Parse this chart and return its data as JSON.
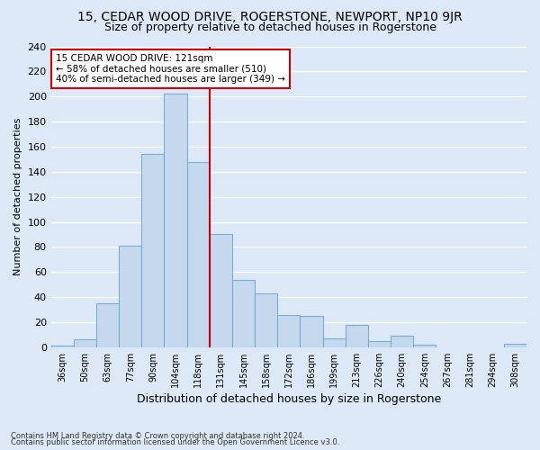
{
  "title": "15, CEDAR WOOD DRIVE, ROGERSTONE, NEWPORT, NP10 9JR",
  "subtitle": "Size of property relative to detached houses in Rogerstone",
  "xlabel": "Distribution of detached houses by size in Rogerstone",
  "ylabel": "Number of detached properties",
  "categories": [
    "36sqm",
    "50sqm",
    "63sqm",
    "77sqm",
    "90sqm",
    "104sqm",
    "118sqm",
    "131sqm",
    "145sqm",
    "158sqm",
    "172sqm",
    "186sqm",
    "199sqm",
    "213sqm",
    "226sqm",
    "240sqm",
    "254sqm",
    "267sqm",
    "281sqm",
    "294sqm",
    "308sqm"
  ],
  "values": [
    1,
    6,
    35,
    81,
    154,
    202,
    148,
    90,
    54,
    43,
    26,
    25,
    7,
    18,
    5,
    9,
    2,
    0,
    0,
    0,
    3
  ],
  "bar_color": "#c5d8ee",
  "bar_edge_color": "#7aadd4",
  "highlight_index": 6,
  "vline_color": "#cc0000",
  "annotation_text": "15 CEDAR WOOD DRIVE: 121sqm\n← 58% of detached houses are smaller (510)\n40% of semi-detached houses are larger (349) →",
  "annotation_box_color": "#ffffff",
  "annotation_box_edge": "#cc0000",
  "footnote1": "Contains HM Land Registry data © Crown copyright and database right 2024.",
  "footnote2": "Contains public sector information licensed under the Open Government Licence v3.0.",
  "ylim": [
    0,
    240
  ],
  "yticks": [
    0,
    20,
    40,
    60,
    80,
    100,
    120,
    140,
    160,
    180,
    200,
    220,
    240
  ],
  "background_color": "#dce8f5",
  "plot_background": "#dce8f5",
  "grid_color": "#ffffff",
  "title_fontsize": 10,
  "subtitle_fontsize": 9,
  "ylabel_fontsize": 8,
  "xlabel_fontsize": 9
}
